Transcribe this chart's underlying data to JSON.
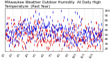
{
  "title": "Milwaukee Weather Outdoor Humidity  At Daily High  Temperature  (Past Year)",
  "title_fontsize": 3.8,
  "bg_color": "#ffffff",
  "plot_bg_color": "#ffffff",
  "ylim": [
    15,
    105
  ],
  "yticks": [
    20,
    30,
    40,
    50,
    60,
    70,
    80,
    90,
    100
  ],
  "ytick_fontsize": 3.2,
  "xtick_fontsize": 2.8,
  "grid_color": "#aaaaaa",
  "blue_color": "#0000dd",
  "red_color": "#dd0000",
  "n_points": 365,
  "seed": 42,
  "markersize": 0.6,
  "linewidth": 0.5
}
